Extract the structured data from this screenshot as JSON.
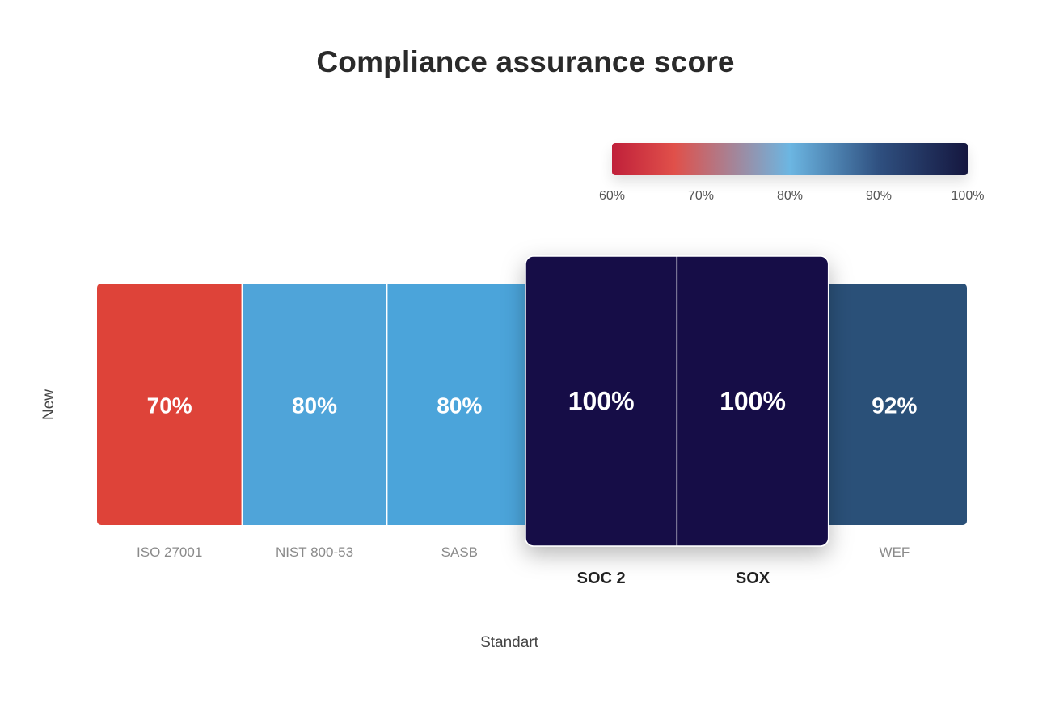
{
  "chart_data": {
    "type": "heatmap",
    "title": "Compliance assurance score",
    "xlabel": "Standart",
    "ylabel": "New",
    "rows": [
      "New"
    ],
    "categories": [
      "ISO 27001",
      "NIST 800-53",
      "SASB",
      "SOC 2",
      "SOX",
      "WEF"
    ],
    "values": [
      70,
      80,
      80,
      100,
      100,
      92
    ],
    "value_labels": [
      "70%",
      "80%",
      "80%",
      "100%",
      "100%",
      "92%"
    ],
    "highlighted": [
      "SOC 2",
      "SOX"
    ],
    "color_scale": {
      "range": [
        60,
        100
      ],
      "tick_labels": [
        "60%",
        "70%",
        "80%",
        "90%",
        "100%"
      ],
      "stops": [
        {
          "value": 60,
          "color": "#c0203a"
        },
        {
          "value": 67,
          "color": "#e0504a"
        },
        {
          "value": 80,
          "color": "#6cb6e2"
        },
        {
          "value": 90,
          "color": "#2f5080"
        },
        {
          "value": 100,
          "color": "#15173f"
        }
      ]
    },
    "cell_colors": [
      "#de4339",
      "#4fa4d9",
      "#4ba4da",
      "#140e46",
      "#140e46",
      "#2a5078"
    ],
    "legend_position": "top-right"
  }
}
